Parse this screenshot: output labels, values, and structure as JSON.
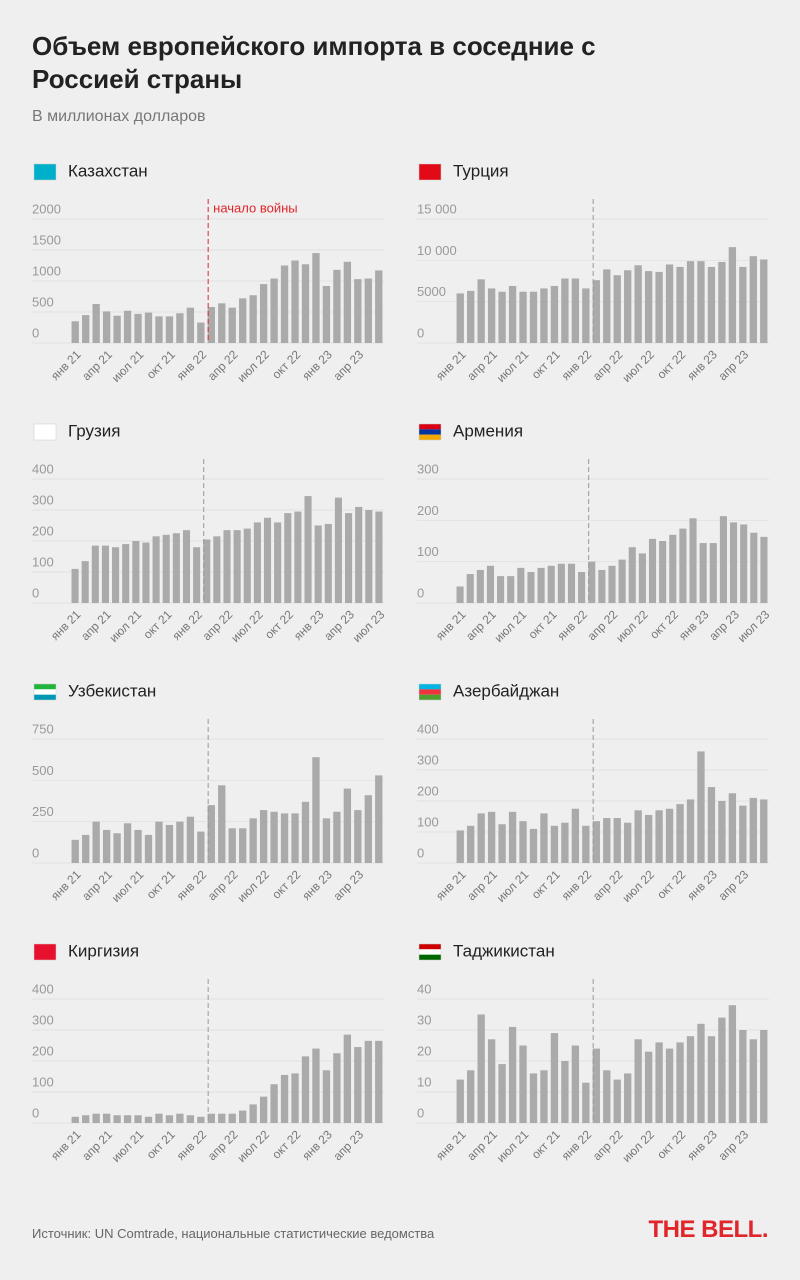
{
  "header": {
    "title": "Объем европейского импорта в соседние с Россией страны",
    "subtitle": "В миллионах долларов"
  },
  "footer": {
    "source": "Источник: UN Comtrade, национальные статистические ведомства",
    "logo": "THE BELL."
  },
  "chart_data": [
    {
      "type": "bar",
      "title": "Казахстан",
      "annotation": "начало войны",
      "color": "#aaaaaa",
      "categories": [
        "янв 21",
        null,
        null,
        "апр 21",
        null,
        null,
        "июл 21",
        null,
        null,
        "окт 21",
        null,
        null,
        "янв 22",
        null,
        null,
        "апр 22",
        null,
        null,
        "июл 22",
        null,
        null,
        "окт 22",
        null,
        null,
        "янв 23",
        null,
        null,
        "апр 23",
        null,
        null
      ],
      "values": [
        350,
        450,
        630,
        510,
        440,
        520,
        470,
        490,
        430,
        430,
        480,
        570,
        330,
        580,
        640,
        570,
        720,
        770,
        950,
        1040,
        1250,
        1330,
        1270,
        1450,
        920,
        1180,
        1310,
        1030,
        1040,
        1170
      ],
      "ylim": [
        0,
        2000
      ],
      "yticks": [
        0,
        500,
        1000,
        1500,
        2000
      ]
    },
    {
      "type": "bar",
      "title": "Турция",
      "color": "#aaaaaa",
      "categories": [
        "янв 21",
        null,
        null,
        "апр 21",
        null,
        null,
        "июл 21",
        null,
        null,
        "окт 21",
        null,
        null,
        "янв 22",
        null,
        null,
        "апр 22",
        null,
        null,
        "июл 22",
        null,
        null,
        "окт 22",
        null,
        null,
        "янв 23",
        null,
        null,
        "апр 23",
        null,
        null
      ],
      "values": [
        6000,
        6300,
        7700,
        6600,
        6200,
        6900,
        6200,
        6200,
        6600,
        6900,
        7800,
        7800,
        6600,
        7600,
        8900,
        8200,
        8800,
        9400,
        8700,
        8600,
        9500,
        9200,
        9900,
        9900,
        9200,
        9800,
        11600,
        9200,
        10500,
        10100
      ],
      "ylim": [
        0,
        15000
      ],
      "yticks": [
        0,
        5000,
        {
          "value": 10000,
          "label": "10 000"
        },
        {
          "value": 15000,
          "label": "15 000"
        }
      ]
    },
    {
      "type": "bar",
      "title": "Грузия",
      "color": "#aaaaaa",
      "categories": [
        "янв 21",
        null,
        null,
        "апр 21",
        null,
        null,
        "июл 21",
        null,
        null,
        "окт 21",
        null,
        null,
        "янв 22",
        null,
        null,
        "апр 22",
        null,
        null,
        "июл 22",
        null,
        null,
        "окт 22",
        null,
        null,
        "янв 23",
        null,
        null,
        "апр 23",
        null,
        null,
        "июл 23"
      ],
      "values": [
        110,
        135,
        185,
        185,
        180,
        190,
        200,
        195,
        215,
        220,
        225,
        235,
        180,
        205,
        215,
        235,
        235,
        240,
        260,
        275,
        260,
        290,
        295,
        345,
        250,
        255,
        340,
        290,
        310,
        300,
        295
      ],
      "ylim": [
        0,
        400
      ],
      "yticks": [
        0,
        100,
        200,
        300,
        400
      ]
    },
    {
      "type": "bar",
      "title": "Армения",
      "color": "#aaaaaa",
      "categories": [
        "янв 21",
        null,
        null,
        "апр 21",
        null,
        null,
        "июл 21",
        null,
        null,
        "окт 21",
        null,
        null,
        "янв 22",
        null,
        null,
        "апр 22",
        null,
        null,
        "июл 22",
        null,
        null,
        "окт 22",
        null,
        null,
        "янв 23",
        null,
        null,
        "апр 23",
        null,
        null,
        "июл 23"
      ],
      "values": [
        40,
        70,
        80,
        90,
        65,
        65,
        85,
        75,
        85,
        90,
        95,
        95,
        75,
        100,
        80,
        90,
        105,
        135,
        120,
        155,
        150,
        165,
        180,
        205,
        145,
        145,
        210,
        195,
        190,
        170,
        160
      ],
      "ylim": [
        0,
        300
      ],
      "yticks": [
        0,
        100,
        200,
        300
      ]
    },
    {
      "type": "bar",
      "title": "Узбекистан",
      "color": "#aaaaaa",
      "categories": [
        "янв 21",
        null,
        null,
        "апр 21",
        null,
        null,
        "июл 21",
        null,
        null,
        "окт 21",
        null,
        null,
        "янв 22",
        null,
        null,
        "апр 22",
        null,
        null,
        "июл 22",
        null,
        null,
        "окт 22",
        null,
        null,
        "янв 23",
        null,
        null,
        "апр 23",
        null,
        null
      ],
      "values": [
        140,
        170,
        250,
        200,
        180,
        240,
        200,
        170,
        250,
        230,
        250,
        280,
        190,
        350,
        470,
        210,
        210,
        270,
        320,
        310,
        300,
        300,
        370,
        640,
        270,
        310,
        450,
        320,
        410,
        530
      ],
      "ylim": [
        0,
        750
      ],
      "yticks": [
        0,
        250,
        500,
        750
      ]
    },
    {
      "type": "bar",
      "title": "Азербайджан",
      "color": "#aaaaaa",
      "categories": [
        "янв 21",
        null,
        null,
        "апр 21",
        null,
        null,
        "июл 21",
        null,
        null,
        "окт 21",
        null,
        null,
        "янв 22",
        null,
        null,
        "апр 22",
        null,
        null,
        "июл 22",
        null,
        null,
        "окт 22",
        null,
        null,
        "янв 23",
        null,
        null,
        "апр 23",
        null,
        null
      ],
      "values": [
        105,
        120,
        160,
        165,
        125,
        165,
        135,
        110,
        160,
        120,
        130,
        175,
        120,
        135,
        145,
        145,
        130,
        170,
        155,
        170,
        175,
        190,
        205,
        360,
        245,
        200,
        225,
        185,
        210,
        205
      ],
      "ylim": [
        0,
        400
      ],
      "yticks": [
        0,
        100,
        200,
        300,
        400
      ]
    },
    {
      "type": "bar",
      "title": "Киргизия",
      "color": "#aaaaaa",
      "categories": [
        "янв 21",
        null,
        null,
        "апр 21",
        null,
        null,
        "июл 21",
        null,
        null,
        "окт 21",
        null,
        null,
        "янв 22",
        null,
        null,
        "апр 22",
        null,
        null,
        "июл 22",
        null,
        null,
        "окт 22",
        null,
        null,
        "янв 23",
        null,
        null,
        "апр 23",
        null,
        null
      ],
      "values": [
        20,
        25,
        30,
        30,
        25,
        25,
        25,
        20,
        30,
        25,
        30,
        25,
        20,
        30,
        30,
        30,
        40,
        60,
        85,
        125,
        155,
        160,
        215,
        240,
        170,
        225,
        285,
        245,
        265,
        265
      ],
      "ylim": [
        0,
        400
      ],
      "yticks": [
        0,
        100,
        200,
        300,
        400
      ]
    },
    {
      "type": "bar",
      "title": "Таджикистан",
      "color": "#aaaaaa",
      "categories": [
        "янв 21",
        null,
        null,
        "апр 21",
        null,
        null,
        "июл 21",
        null,
        null,
        "окт 21",
        null,
        null,
        "янв 22",
        null,
        null,
        "апр 22",
        null,
        null,
        "июл 22",
        null,
        null,
        "окт 22",
        null,
        null,
        "янв 23",
        null,
        null,
        "апр 23",
        null,
        null
      ],
      "values": [
        14,
        17,
        35,
        27,
        19,
        31,
        25,
        16,
        17,
        29,
        20,
        25,
        13,
        24,
        17,
        14,
        16,
        27,
        23,
        26,
        24,
        26,
        28,
        32,
        28,
        34,
        38,
        30,
        27,
        30
      ],
      "ylim": [
        0,
        40
      ],
      "yticks": [
        0,
        10,
        20,
        30,
        40
      ]
    }
  ]
}
